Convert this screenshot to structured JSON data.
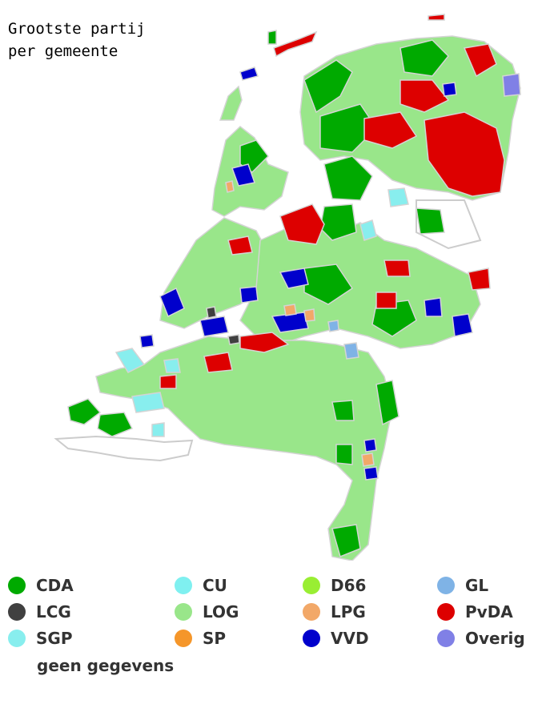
{
  "title": [
    "Grootste partij",
    "per gemeente"
  ],
  "legend": [
    {
      "label": "CDA",
      "color": "#00aa00"
    },
    {
      "label": "CU",
      "color": "#7ff0f0"
    },
    {
      "label": "D66",
      "color": "#99ee33"
    },
    {
      "label": "GL",
      "color": "#7fb3e6"
    },
    {
      "label": "LCG",
      "color": "#404040"
    },
    {
      "label": "LOG",
      "color": "#99e68a"
    },
    {
      "label": "LPG",
      "color": "#f2a868"
    },
    {
      "label": "PvDA",
      "color": "#dd0000"
    },
    {
      "label": "SGP",
      "color": "#88eeee"
    },
    {
      "label": "SP",
      "color": "#f5962a"
    },
    {
      "label": "VVD",
      "color": "#0000cc"
    },
    {
      "label": "Overig",
      "color": "#8080e6"
    }
  ],
  "no_data_label": "geen gegevens",
  "colors": {
    "border": "#d4d4d4",
    "no_data": "#ffffff"
  }
}
